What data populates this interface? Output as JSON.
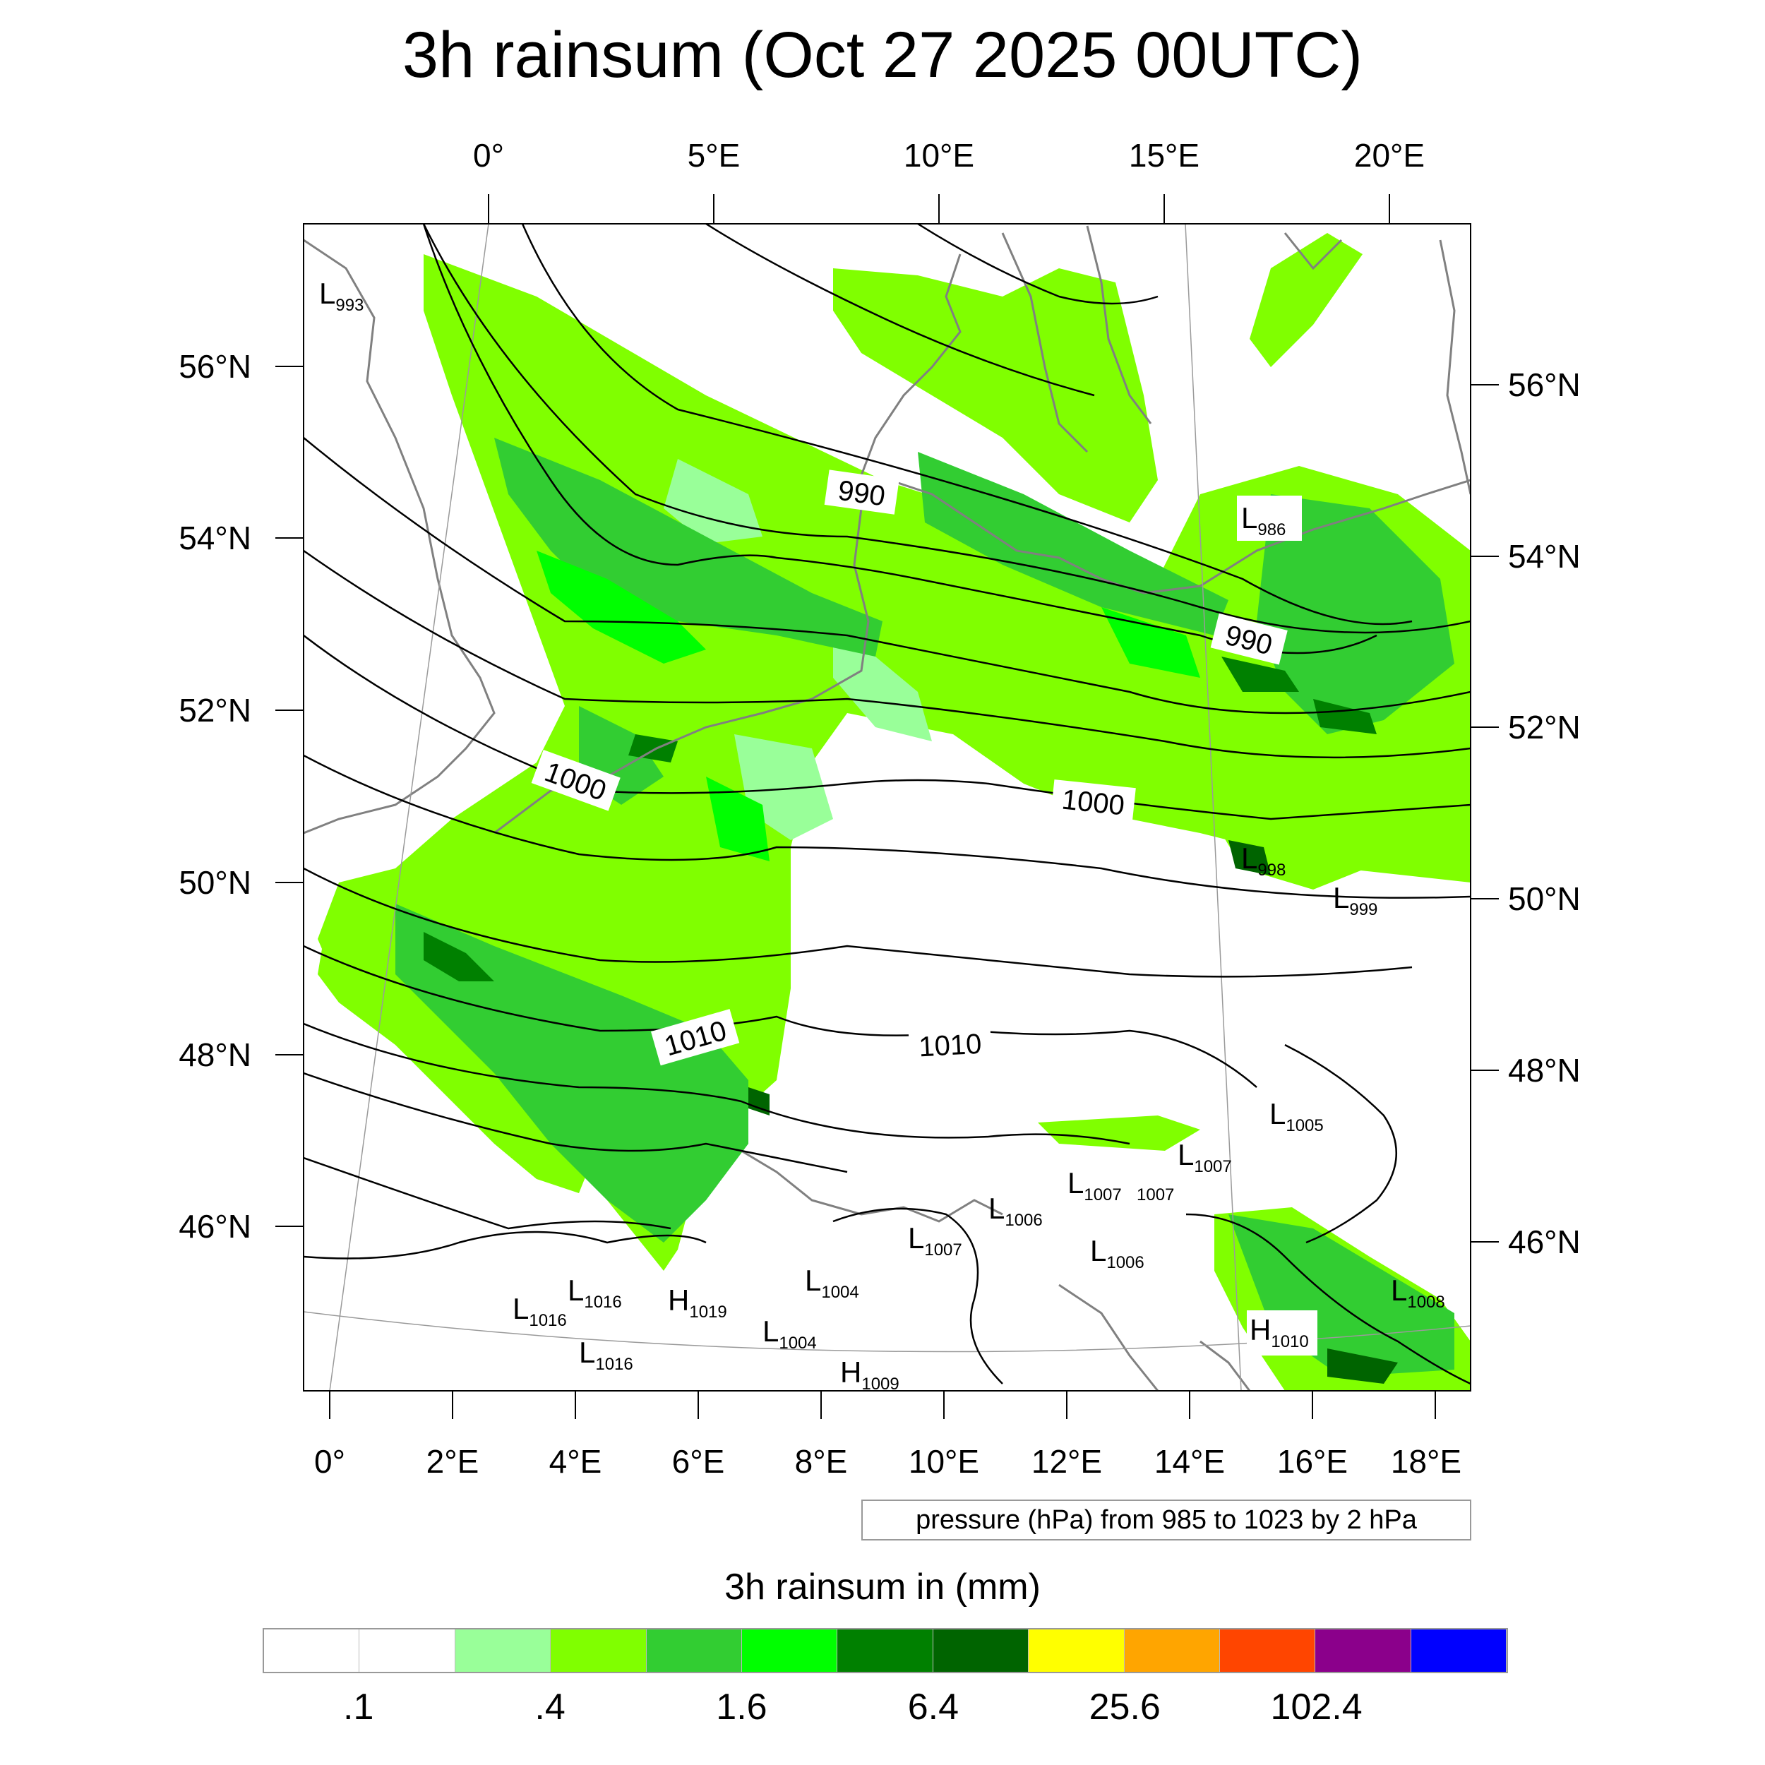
{
  "title": "3h rainsum (Oct 27 2025 00UTC)",
  "note": "pressure (hPa) from 985 to 1023 by 2 hPa",
  "colorbar": {
    "title": "3h rainsum in (mm)",
    "colors": [
      "#ffffff",
      "#ffffff",
      "#99ff99",
      "#80ff00",
      "#32cd32",
      "#00ff00",
      "#008000",
      "#006400",
      "#ffff00",
      "#ffa500",
      "#ff4500",
      "#8b008b",
      "#0000ff"
    ],
    "labels": [
      ".1",
      ".4",
      "1.6",
      "6.4",
      "25.6",
      "102.4"
    ]
  },
  "axes": {
    "top_lon_ticks": [
      "0°",
      "5°E",
      "10°E",
      "15°E",
      "20°E"
    ],
    "bottom_lon_ticks": [
      "0°",
      "2°E",
      "4°E",
      "6°E",
      "8°E",
      "10°E",
      "12°E",
      "14°E",
      "16°E",
      "18°E"
    ],
    "left_lat_ticks": [
      "56°N",
      "54°N",
      "52°N",
      "50°N",
      "48°N",
      "46°N"
    ],
    "right_lat_ticks": [
      "56°N",
      "54°N",
      "52°N",
      "50°N",
      "48°N",
      "46°N"
    ]
  },
  "contour_labels": [
    "990",
    "990",
    "1000",
    "1000",
    "1010",
    "1010"
  ],
  "pressure_centers": [
    {
      "type": "L",
      "value": "993"
    },
    {
      "type": "L",
      "value": "986"
    },
    {
      "type": "L",
      "value": "998"
    },
    {
      "type": "L",
      "value": "999"
    },
    {
      "type": "L",
      "value": "1005"
    },
    {
      "type": "L",
      "value": "1007"
    },
    {
      "type": "L",
      "value": "1007"
    },
    {
      "type": "L",
      "value": "1007"
    },
    {
      "type": "L",
      "value": "1006"
    },
    {
      "type": "L",
      "value": "1007"
    },
    {
      "type": "L",
      "value": "1006"
    },
    {
      "type": "L",
      "value": "1004"
    },
    {
      "type": "L",
      "value": "1004"
    },
    {
      "type": "L",
      "value": "1016"
    },
    {
      "type": "L",
      "value": "1016"
    },
    {
      "type": "L",
      "value": "1016"
    },
    {
      "type": "H",
      "value": "1019"
    },
    {
      "type": "H",
      "value": "1009"
    },
    {
      "type": "H",
      "value": "1010"
    },
    {
      "type": "L",
      "value": "1008"
    }
  ]
}
